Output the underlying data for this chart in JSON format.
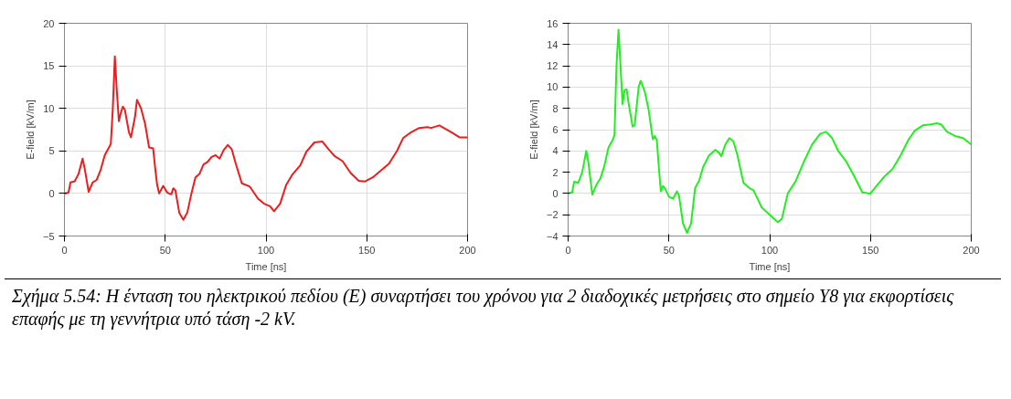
{
  "chart_data": [
    {
      "type": "line",
      "xlabel": "Time [ns]",
      "ylabel": "E-field [kV/m]",
      "xlim": [
        0,
        200
      ],
      "xticks": [
        0,
        50,
        100,
        150,
        200
      ],
      "ylim": [
        -5,
        20
      ],
      "yticks": [
        -5,
        0,
        5,
        10,
        15,
        20
      ],
      "grid": true,
      "series": [
        {
          "color": "#ee1c1c",
          "x": [
            0,
            2,
            3,
            5,
            7,
            9,
            10,
            12,
            14,
            16,
            18,
            20,
            23,
            24,
            25,
            26,
            27,
            28,
            29,
            30,
            32,
            33,
            35,
            36,
            38,
            40,
            42,
            44,
            45,
            46,
            47,
            49,
            51,
            53,
            54,
            55,
            57,
            59,
            61,
            63,
            65,
            67,
            69,
            71,
            73,
            75,
            77,
            79,
            81,
            83,
            85,
            88,
            92,
            96,
            99,
            102,
            104,
            107,
            110,
            113,
            117,
            120,
            124,
            128,
            131,
            134,
            138,
            142,
            146,
            149,
            153,
            157,
            161,
            165,
            168,
            172,
            176,
            180,
            182,
            186,
            189,
            192,
            196,
            200
          ],
          "values": [
            0,
            0.1,
            1.3,
            1.4,
            2.3,
            4.1,
            3.0,
            0.2,
            1.3,
            1.6,
            2.8,
            4.5,
            5.8,
            10,
            16.1,
            12,
            8.5,
            9.5,
            10.2,
            9.8,
            7.2,
            6.6,
            9,
            11,
            10,
            8.2,
            5.4,
            5.3,
            3,
            1,
            0,
            0.9,
            0.1,
            -0.1,
            0.6,
            0.4,
            -2.3,
            -3.1,
            -2.2,
            0,
            1.9,
            2.3,
            3.4,
            3.7,
            4.3,
            4.5,
            4.1,
            5.1,
            5.7,
            5.2,
            3.5,
            1.2,
            0.8,
            -0.6,
            -1.2,
            -1.5,
            -2.1,
            -1.2,
            1.0,
            2.2,
            3.3,
            4.9,
            6.0,
            6.1,
            5.2,
            4.4,
            3.8,
            2.4,
            1.5,
            1.4,
            1.9,
            2.7,
            3.5,
            5,
            6.5,
            7.2,
            7.7,
            7.8,
            7.7,
            8,
            7.6,
            7.2,
            6.6,
            6.6
          ]
        }
      ]
    },
    {
      "type": "line",
      "xlabel": "Time [ns]",
      "ylabel": "E-field [kV/m]",
      "xlim": [
        0,
        200
      ],
      "xticks": [
        0,
        50,
        100,
        150,
        200
      ],
      "ylim": [
        -4,
        16
      ],
      "yticks": [
        -4,
        -2,
        0,
        2,
        4,
        6,
        8,
        10,
        12,
        14,
        16
      ],
      "grid": true,
      "series": [
        {
          "color": "#22ee22",
          "x": [
            0,
            2,
            3,
            5,
            7,
            9,
            10,
            12,
            14,
            16,
            18,
            20,
            22,
            23,
            24,
            25,
            26,
            27,
            28,
            29,
            30,
            32,
            33,
            35,
            36,
            38,
            40,
            42,
            43,
            44,
            45,
            46,
            47,
            48,
            50,
            52,
            54,
            55,
            57,
            59,
            61,
            63,
            65,
            67,
            70,
            73,
            75,
            76,
            78,
            80,
            82,
            84,
            87,
            90,
            92,
            96,
            100,
            104,
            106,
            109,
            113,
            117,
            121,
            125,
            128,
            131,
            134,
            138,
            142,
            146,
            150,
            153,
            157,
            161,
            165,
            169,
            172,
            176,
            180,
            183,
            185,
            188,
            192,
            196,
            200
          ],
          "values": [
            0,
            0.1,
            1.1,
            1.0,
            2.0,
            4.0,
            3,
            -0.1,
            0.8,
            1.4,
            2.6,
            4.3,
            5.0,
            5.5,
            12,
            15.4,
            12,
            8.4,
            9.7,
            9.8,
            8.5,
            6.3,
            6.4,
            10,
            10.6,
            9.6,
            7.8,
            5.1,
            5.4,
            5,
            2.5,
            0.2,
            0.7,
            0.5,
            -0.3,
            -0.5,
            0.2,
            -0.2,
            -2.8,
            -3.7,
            -2.8,
            0.5,
            1.2,
            2.5,
            3.6,
            4.1,
            3.8,
            3.5,
            4.6,
            5.2,
            4.9,
            3.6,
            1.0,
            0.5,
            0.3,
            -1.3,
            -2.0,
            -2.7,
            -2.4,
            0,
            1.2,
            3.0,
            4.6,
            5.6,
            5.8,
            5.2,
            4,
            3,
            1.6,
            0.1,
            0,
            0.7,
            1.6,
            2.3,
            3.6,
            5.1,
            5.9,
            6.4,
            6.5,
            6.6,
            6.5,
            5.8,
            5.4,
            5.2,
            4.6
          ]
        }
      ]
    },
    {
      "type": "other",
      "annotations": [
        "Σχήμα 5.54: Η ένταση του ηλεκτρικού πεδίου (Ε) συναρτήσει του χρόνου για 2 διαδοχικές μετρήσεις στο σημείο Υ8 για εκφορτίσεις επαφής με τη γεννήτρια υπό τάση -2 kV."
      ]
    }
  ]
}
